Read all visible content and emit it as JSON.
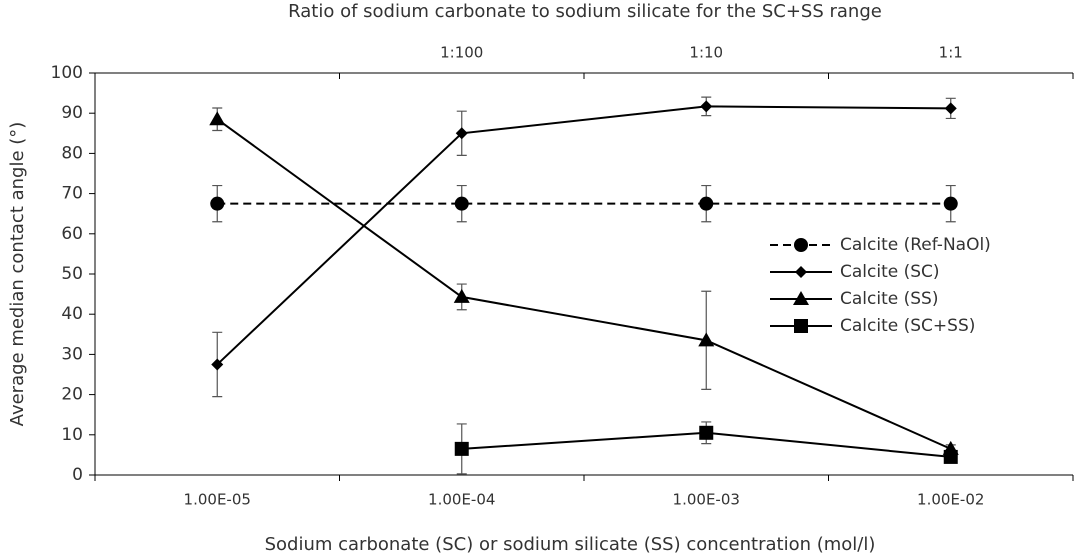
{
  "chart_data": {
    "type": "line",
    "x_label": "Sodium carbonate (SC) or sodium silicate (SS) concentration (mol/l)",
    "x2_label": "Ratio of sodium carbonate to sodium silicate for the SC+SS range",
    "y_label": "Average median contact angle (°)",
    "categories": [
      "1.00E-05",
      "1.00E-04",
      "1.00E-03",
      "1.00E-02"
    ],
    "x2_categories": [
      null,
      "1:100",
      "1:10",
      "1:1"
    ],
    "ylim": [
      0,
      100
    ],
    "yticks": [
      0,
      10,
      20,
      30,
      40,
      50,
      60,
      70,
      80,
      90,
      100
    ],
    "grid": false,
    "legend": "right",
    "series": [
      {
        "name": "Calcite (Ref-NaOl)",
        "color": "#000000",
        "line_style": "dashed",
        "marker": "circle",
        "values": [
          67.5,
          67.5,
          67.5,
          67.5
        ],
        "errors": [
          4.5,
          4.5,
          4.5,
          4.5
        ]
      },
      {
        "name": "Calcite (SC)",
        "color": "#000000",
        "line_style": "solid",
        "marker": "diamond",
        "values": [
          27.5,
          85,
          91.7,
          91.2
        ],
        "errors": [
          8,
          5.5,
          2.3,
          2.5
        ]
      },
      {
        "name": "Calcite (SS)",
        "color": "#000000",
        "line_style": "solid",
        "marker": "triangle",
        "values": [
          88.5,
          44.3,
          33.5,
          6.5
        ],
        "errors": [
          2.8,
          3.2,
          12.2,
          1
        ]
      },
      {
        "name": "Calcite (SC+SS)",
        "color": "#000000",
        "line_style": "solid",
        "marker": "square",
        "values": [
          null,
          6.5,
          10.5,
          4.5
        ],
        "errors": [
          null,
          6.2,
          2.7,
          1
        ]
      }
    ]
  }
}
